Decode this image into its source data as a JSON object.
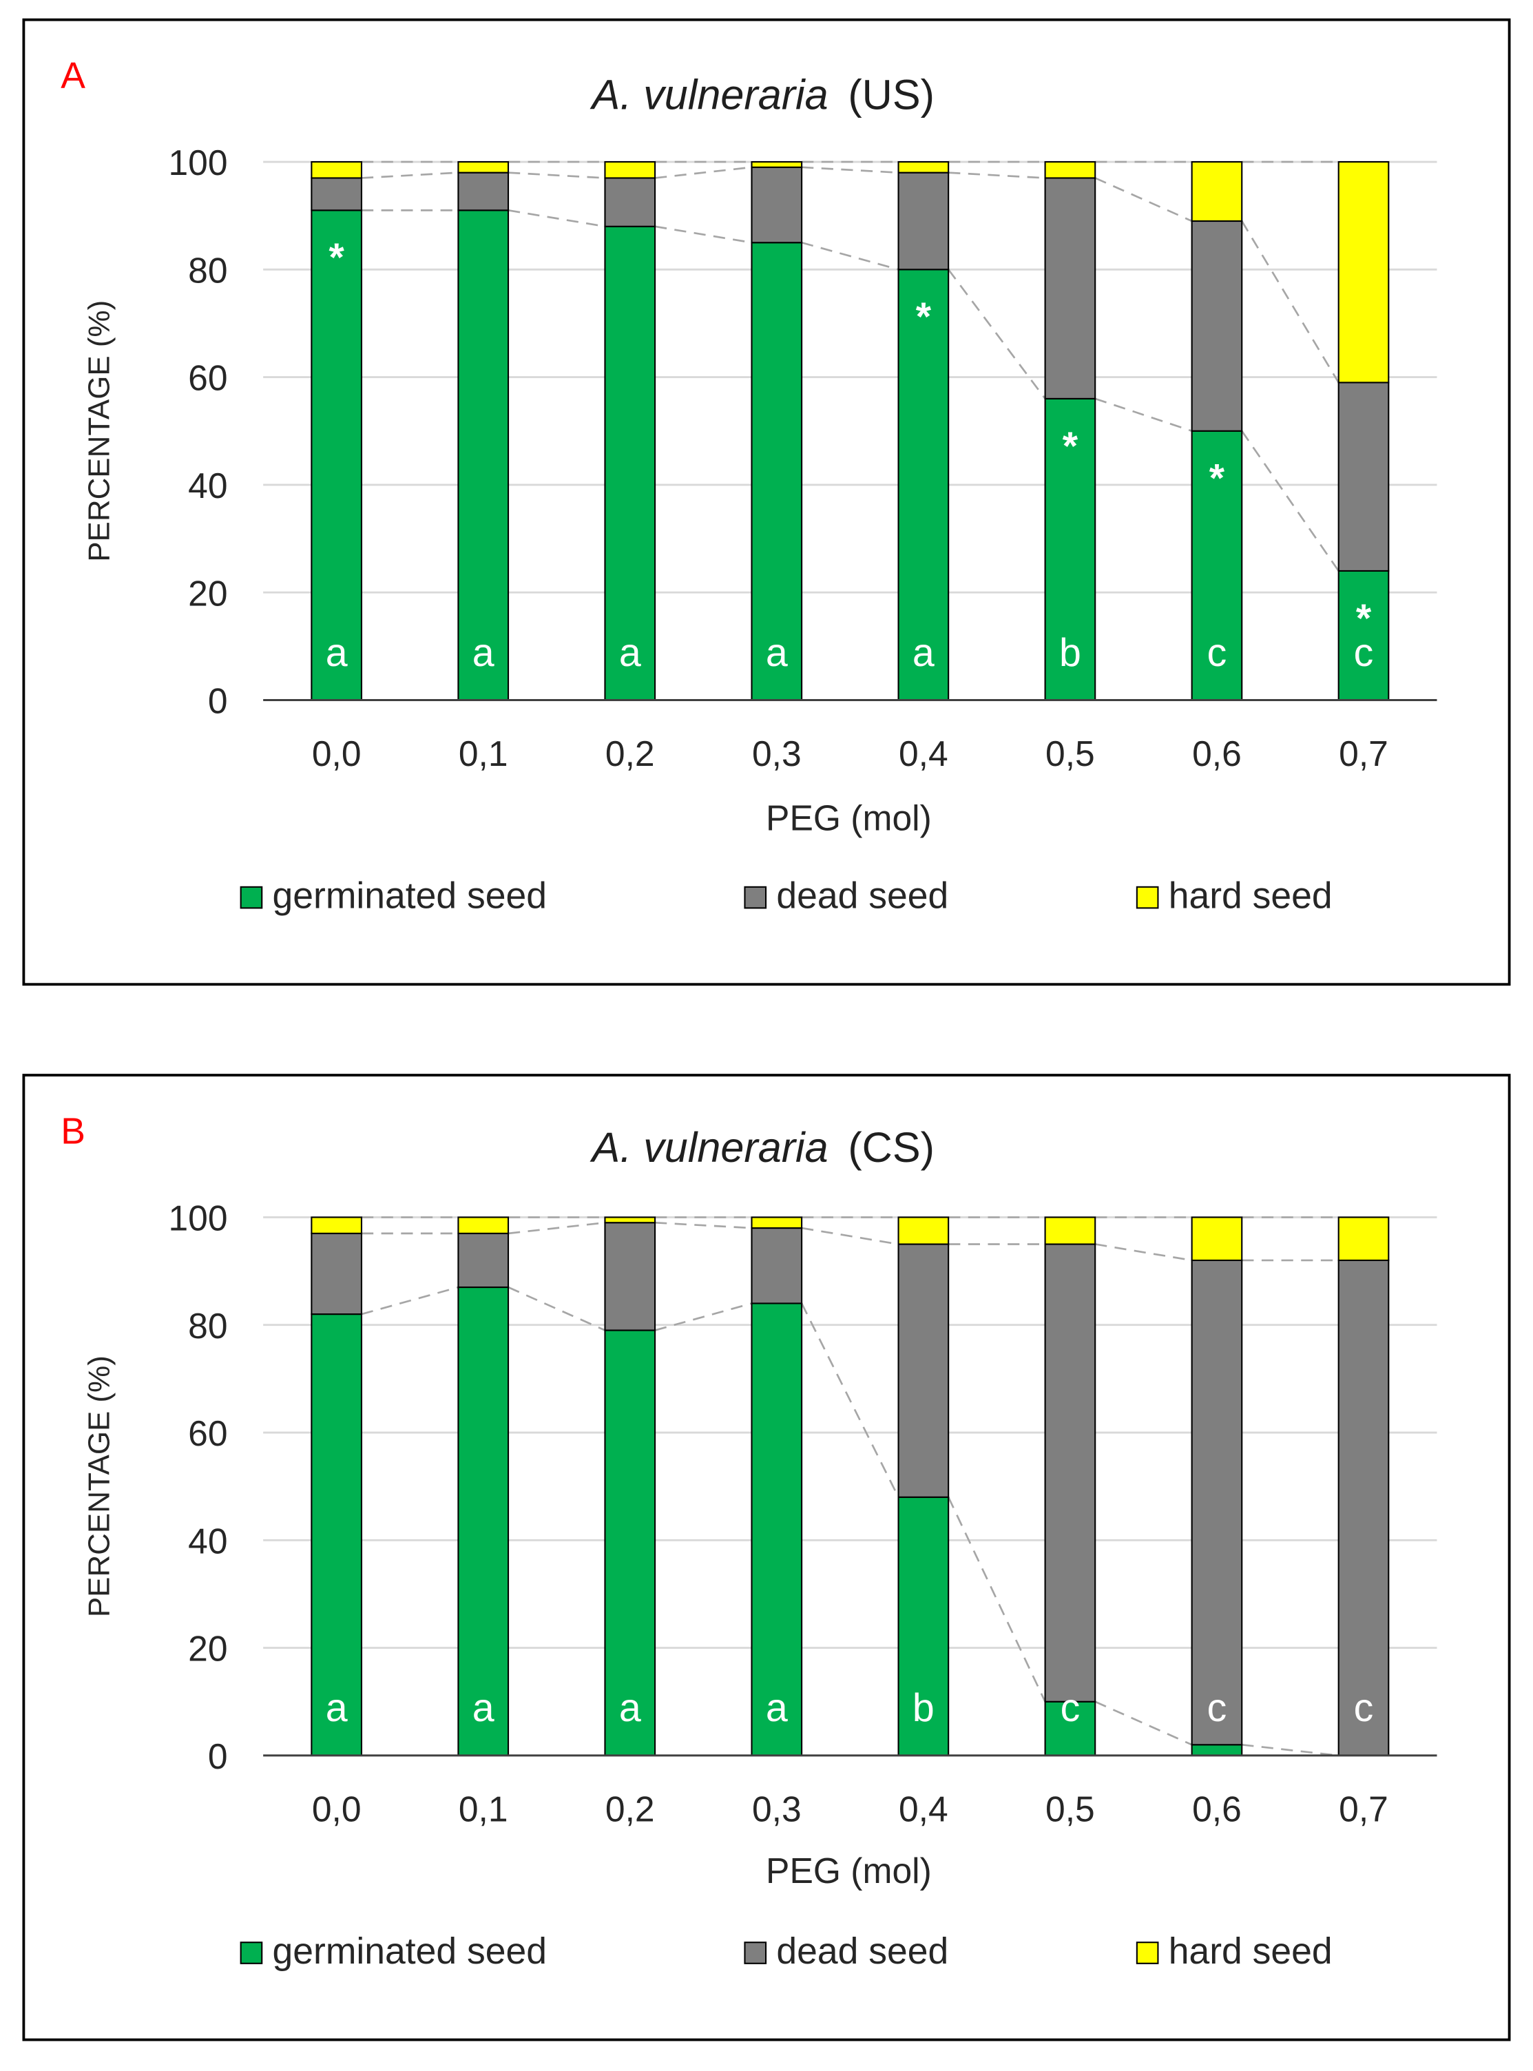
{
  "chart_data": [
    {
      "type": "bar",
      "stacked": true,
      "panel": "A",
      "panel_label_color": "#ff0000",
      "title": {
        "species": "A. vulneraria",
        "treatment": "(US)"
      },
      "xlabel": "PEG (mol)",
      "ylabel": "PERCENTAGE (%)",
      "ylim": [
        0,
        100
      ],
      "yticks": [
        0,
        20,
        40,
        60,
        80,
        100
      ],
      "grid": true,
      "series_lines": true,
      "legend_position": "bottom",
      "categories": [
        "0,0",
        "0,1",
        "0,2",
        "0,3",
        "0,4",
        "0,5",
        "0,6",
        "0,7"
      ],
      "series": [
        {
          "name": "germinated seed",
          "color": "#00b050",
          "values": [
            91,
            91,
            88,
            85,
            80,
            56,
            50,
            24
          ]
        },
        {
          "name": "dead seed",
          "color": "#7f7f7f",
          "values": [
            6,
            7,
            9,
            14,
            18,
            41,
            39,
            35
          ]
        },
        {
          "name": "hard seed",
          "color": "#ffff00",
          "values": [
            3,
            2,
            3,
            1,
            2,
            3,
            11,
            41
          ]
        }
      ],
      "significance_letters": [
        "a",
        "a",
        "a",
        "a",
        "a",
        "b",
        "c",
        "c"
      ],
      "asterisk": "*",
      "asterisk_marked": [
        true,
        false,
        false,
        false,
        true,
        true,
        true,
        true
      ]
    },
    {
      "type": "bar",
      "stacked": true,
      "panel": "B",
      "panel_label_color": "#ff0000",
      "title": {
        "species": "A. vulneraria",
        "treatment": "(CS)"
      },
      "xlabel": "PEG (mol)",
      "ylabel": "PERCENTAGE (%)",
      "ylim": [
        0,
        100
      ],
      "yticks": [
        0,
        20,
        40,
        60,
        80,
        100
      ],
      "grid": true,
      "series_lines": true,
      "legend_position": "bottom",
      "categories": [
        "0,0",
        "0,1",
        "0,2",
        "0,3",
        "0,4",
        "0,5",
        "0,6",
        "0,7"
      ],
      "series": [
        {
          "name": "germinated seed",
          "color": "#00b050",
          "values": [
            82,
            87,
            79,
            84,
            48,
            10,
            2,
            0
          ]
        },
        {
          "name": "dead seed",
          "color": "#7f7f7f",
          "values": [
            15,
            10,
            20,
            14,
            47,
            85,
            90,
            92
          ]
        },
        {
          "name": "hard seed",
          "color": "#ffff00",
          "values": [
            3,
            3,
            1,
            2,
            5,
            5,
            8,
            8
          ]
        }
      ],
      "significance_letters": [
        "a",
        "a",
        "a",
        "a",
        "b",
        "c",
        "c",
        "c"
      ]
    }
  ]
}
